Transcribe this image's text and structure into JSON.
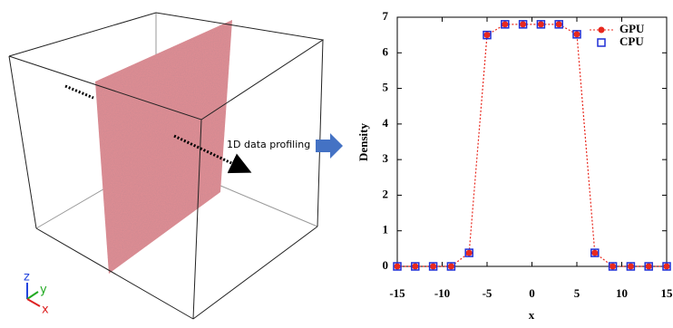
{
  "figure": {
    "annotation": "1D data profiling",
    "axis_labels": [
      "z",
      "y",
      "x"
    ]
  },
  "chart_data": {
    "type": "line",
    "x_label": "x",
    "y_label": "Density",
    "x": [
      -15,
      -13,
      -11,
      -9,
      -7,
      -5,
      -3,
      -1,
      1,
      3,
      5,
      7,
      9,
      11,
      13,
      15
    ],
    "series": [
      {
        "name": "GPU",
        "color": "#e8281e",
        "marker": "circle",
        "values": [
          0,
          0,
          0,
          0,
          0.38,
          6.5,
          6.8,
          6.8,
          6.8,
          6.8,
          6.52,
          0.38,
          0,
          0,
          0,
          0
        ]
      },
      {
        "name": "CPU",
        "color": "#1f2fd6",
        "marker": "square",
        "values": [
          0,
          0,
          0,
          0,
          0.38,
          6.5,
          6.8,
          6.8,
          6.8,
          6.8,
          6.52,
          0.38,
          0,
          0,
          0,
          0
        ]
      }
    ],
    "xlim": [
      -15,
      15
    ],
    "xticks": [
      -15,
      -10,
      -5,
      0,
      5,
      10,
      15
    ],
    "ylim": [
      0,
      7
    ],
    "yticks": [
      0,
      1,
      2,
      3,
      4,
      5,
      6,
      7
    ],
    "legend": "upper right"
  }
}
